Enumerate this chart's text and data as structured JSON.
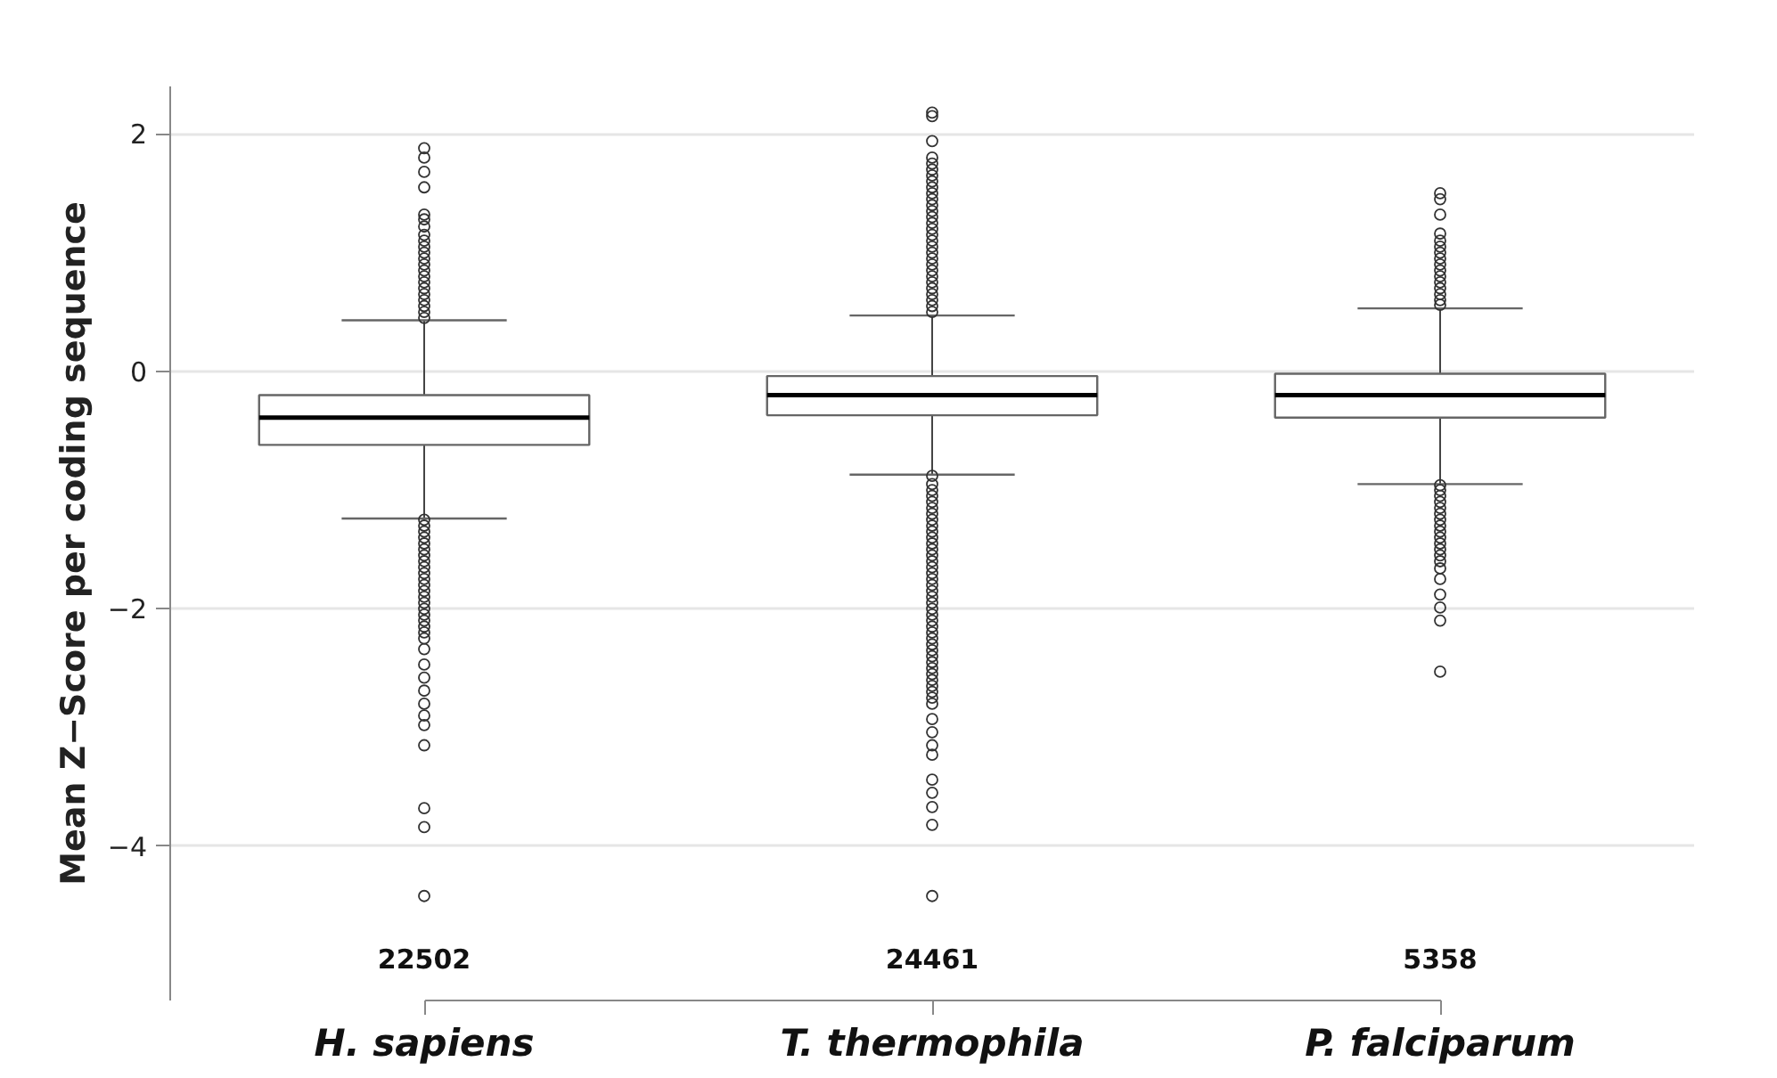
{
  "chart_data": {
    "type": "box",
    "ylabel": "Mean Z−Score per coding sequence",
    "categories": [
      "H. sapiens",
      "T. thermophila",
      "P. falciparum"
    ],
    "ylim": [
      -5.3,
      2.4
    ],
    "yticks": [
      {
        "value": -4,
        "label": "−4"
      },
      {
        "value": -2,
        "label": "−2"
      },
      0,
      2
    ],
    "grid": "y",
    "boxes": [
      {
        "low": -1.24,
        "q1": -0.62,
        "median": -0.39,
        "q3": -0.2,
        "high": 0.43,
        "outliers": [
          1.88,
          1.8,
          1.68,
          1.55,
          1.32,
          1.28,
          1.22,
          1.15,
          1.1,
          1.05,
          1.0,
          0.95,
          0.9,
          0.85,
          0.8,
          0.75,
          0.7,
          0.65,
          0.6,
          0.55,
          0.5,
          0.45,
          -1.25,
          -1.3,
          -1.35,
          -1.4,
          -1.45,
          -1.5,
          -1.55,
          -1.6,
          -1.65,
          -1.7,
          -1.75,
          -1.8,
          -1.85,
          -1.9,
          -1.95,
          -2.0,
          -2.05,
          -2.1,
          -2.15,
          -2.2,
          -2.25,
          -2.34,
          -2.47,
          -2.58,
          -2.69,
          -2.8,
          -2.9,
          -2.98,
          -3.15,
          -3.68,
          -3.84,
          -4.42
        ]
      },
      {
        "low": -0.87,
        "q1": -0.37,
        "median": -0.2,
        "q3": -0.04,
        "high": 0.47,
        "outliers": [
          2.18,
          2.15,
          1.94,
          1.8,
          1.75,
          1.7,
          1.65,
          1.6,
          1.55,
          1.5,
          1.45,
          1.4,
          1.35,
          1.3,
          1.25,
          1.2,
          1.15,
          1.1,
          1.05,
          1.0,
          0.95,
          0.9,
          0.85,
          0.8,
          0.75,
          0.7,
          0.65,
          0.6,
          0.55,
          0.5,
          -0.88,
          -0.95,
          -1.0,
          -1.05,
          -1.1,
          -1.15,
          -1.2,
          -1.25,
          -1.3,
          -1.35,
          -1.4,
          -1.45,
          -1.5,
          -1.55,
          -1.6,
          -1.65,
          -1.7,
          -1.75,
          -1.8,
          -1.85,
          -1.9,
          -1.95,
          -2.0,
          -2.05,
          -2.1,
          -2.15,
          -2.2,
          -2.25,
          -2.3,
          -2.35,
          -2.4,
          -2.45,
          -2.5,
          -2.55,
          -2.6,
          -2.65,
          -2.7,
          -2.75,
          -2.8,
          -2.93,
          -3.04,
          -3.15,
          -3.23,
          -3.44,
          -3.55,
          -3.67,
          -3.82,
          -4.42
        ]
      },
      {
        "low": -0.95,
        "q1": -0.39,
        "median": -0.2,
        "q3": -0.02,
        "high": 0.53,
        "outliers": [
          1.5,
          1.45,
          1.32,
          1.16,
          1.1,
          1.05,
          1.0,
          0.95,
          0.9,
          0.85,
          0.8,
          0.75,
          0.7,
          0.65,
          0.6,
          0.56,
          -0.96,
          -1.0,
          -1.05,
          -1.1,
          -1.15,
          -1.2,
          -1.25,
          -1.3,
          -1.35,
          -1.4,
          -1.45,
          -1.5,
          -1.55,
          -1.6,
          -1.66,
          -1.75,
          -1.88,
          -1.99,
          -2.1,
          -2.53
        ]
      }
    ],
    "annotations": [
      "22502",
      "24461",
      "5358"
    ]
  }
}
